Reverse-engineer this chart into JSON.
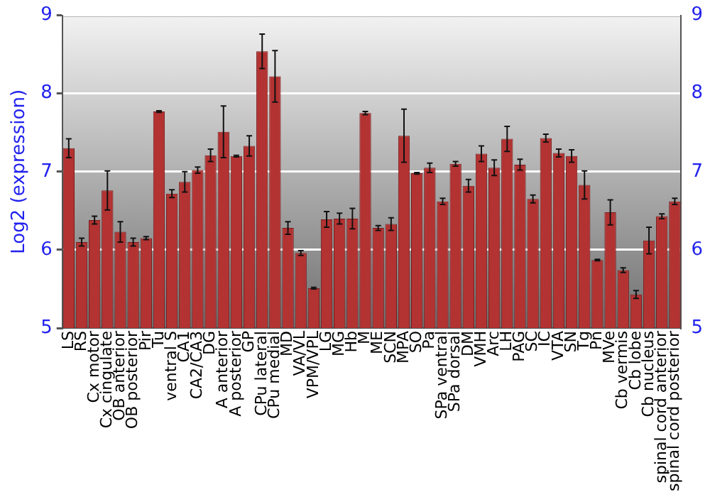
{
  "chart_data": {
    "type": "bar",
    "ylabel": "Log2 (expression)",
    "categories": [
      "LS",
      "RS",
      "Cx motor",
      "Cx cingulate",
      "OB anterior",
      "OB posterior",
      "Pir",
      "Tu",
      "ventral S",
      "CA1",
      "CA2/CA3",
      "DG",
      "A anterior",
      "A posterior",
      "GP",
      "CPu lateral",
      "CPu medial",
      "MD",
      "VA/VL",
      "VPM/VPL",
      "LG",
      "MG",
      "Hb",
      "M",
      "ME",
      "SCN",
      "MPA",
      "SO",
      "Pa",
      "SPa ventral",
      "SPa dorsal",
      "DM",
      "VMH",
      "Arc",
      "LH",
      "PAG",
      "SC",
      "IC",
      "VTA",
      "SN",
      "Tg",
      "Pn",
      "MVe",
      "Cb vermis",
      "Cb lobe",
      "Cb nucleus",
      "spinal cord anterior",
      "spinal cord posterior"
    ],
    "series": [
      {
        "color": "#b33232",
        "values": [
          7.3,
          6.1,
          6.38,
          6.76,
          6.23,
          6.1,
          6.15,
          7.77,
          6.72,
          6.87,
          7.02,
          7.21,
          7.51,
          7.2,
          7.33,
          8.54,
          8.22,
          6.28,
          5.96,
          5.51,
          6.39,
          6.4,
          6.4,
          7.75,
          6.28,
          6.33,
          7.46,
          6.98,
          7.05,
          6.62,
          7.1,
          6.82,
          7.23,
          7.05,
          7.42,
          7.09,
          6.65,
          7.43,
          7.24,
          7.2,
          6.83,
          5.87,
          6.48,
          5.74,
          5.43,
          6.12,
          6.43,
          6.62
        ],
        "errors": [
          0.12,
          0.05,
          0.05,
          0.25,
          0.13,
          0.05,
          0.02,
          0.01,
          0.05,
          0.13,
          0.04,
          0.08,
          0.33,
          0.01,
          0.13,
          0.22,
          0.33,
          0.08,
          0.03,
          0.01,
          0.1,
          0.07,
          0.13,
          0.02,
          0.03,
          0.08,
          0.34,
          0.01,
          0.06,
          0.04,
          0.03,
          0.08,
          0.1,
          0.1,
          0.16,
          0.07,
          0.05,
          0.05,
          0.05,
          0.08,
          0.18,
          0.01,
          0.16,
          0.03,
          0.05,
          0.17,
          0.03,
          0.04
        ]
      }
    ],
    "ylim": [
      5,
      9
    ],
    "yticks": [
      5,
      6,
      7,
      8,
      9
    ],
    "y2lim": [
      5,
      9
    ],
    "y2ticks": [
      5,
      6,
      7,
      8,
      9
    ],
    "grid": "y",
    "legend": false
  }
}
